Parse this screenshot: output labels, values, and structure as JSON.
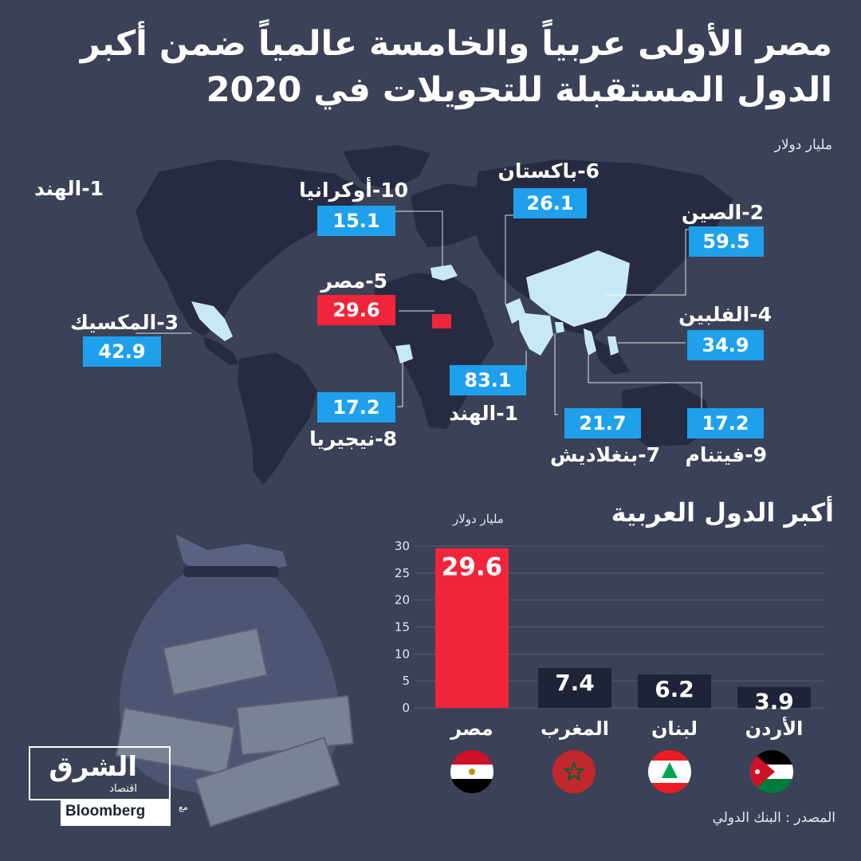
{
  "header": {
    "title_line1": "مصر الأولى عربياً والخامسة عالمياً ضمن أكبر",
    "title_line2": "الدول المستقبلة للتحويلات في 2020",
    "unit": "مليار دولار"
  },
  "map": {
    "countries": [
      {
        "label": "1-الهند",
        "value": "83.1"
      },
      {
        "label": "2-الصين",
        "value": "59.5"
      },
      {
        "label": "3-المكسيك",
        "value": "42.9"
      },
      {
        "label": "4-الفلبين",
        "value": "34.9"
      },
      {
        "label": "5-مصر",
        "value": "29.6"
      },
      {
        "label": "6-باكستان",
        "value": "26.1"
      },
      {
        "label": "7-بنغلاديش",
        "value": "21.7"
      },
      {
        "label": "8-نيجيريا",
        "value": "17.2"
      },
      {
        "label": "9-فيتنام",
        "value": "17.2"
      },
      {
        "label": "10-أوكرانيا",
        "value": "15.1"
      }
    ]
  },
  "arab_section": {
    "title": "أكبر الدول العربية"
  },
  "chart_data": {
    "type": "bar",
    "title": "أكبر الدول العربية",
    "ylabel": "مليار دولار",
    "categories": [
      "مصر",
      "المغرب",
      "لبنان",
      "الأردن"
    ],
    "values": [
      29.6,
      7.4,
      6.2,
      3.9
    ],
    "value_labels": [
      "29.6",
      "7.4",
      "6.2",
      "3.9"
    ],
    "ylim": [
      0,
      30
    ],
    "yticks": [
      0,
      5,
      10,
      15,
      20,
      25,
      30
    ],
    "ytick_labels": [
      "0",
      "5",
      "10",
      "15",
      "20",
      "25",
      "30"
    ],
    "colors": [
      "#f0253b",
      "#1f2338",
      "#1f2338",
      "#1f2338"
    ],
    "grid": true
  },
  "footer": {
    "source": "المصدر : البنك الدولي",
    "logo_ar": "الشرق",
    "logo_sub": "اقتصاد",
    "logo_with": "مع",
    "logo_en": "Bloomberg"
  },
  "colors": {
    "background": "#3b4157",
    "highlight": "#f0253b",
    "accent": "#1ea0ec",
    "bar_dark": "#1f2338"
  }
}
